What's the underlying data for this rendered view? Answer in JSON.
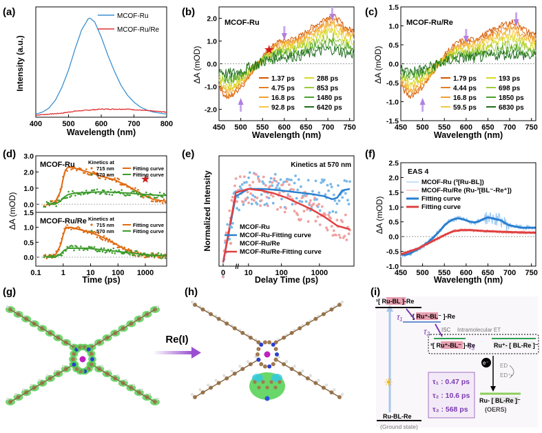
{
  "colors": {
    "mcof_ru": "#3a8fd0",
    "mcof_ru_re": "#e03030",
    "orange": "#e06a10",
    "green": "#3c9a2a",
    "purple": "#9a4fd0",
    "star": "#d01818"
  },
  "panels": {
    "a": {
      "letter": "(a)"
    },
    "b": {
      "letter": "(b)"
    },
    "c": {
      "letter": "(c)"
    },
    "d": {
      "letter": "(d)"
    },
    "e": {
      "letter": "(e)"
    },
    "f": {
      "letter": "(f)"
    },
    "g": {
      "letter": "(g)"
    },
    "h": {
      "letter": "(h)"
    },
    "i": {
      "letter": "(i)"
    }
  },
  "chart_data": [
    {
      "id": "a",
      "type": "line",
      "xlabel": "Wavelength (nm)",
      "ylabel": "Intensity (a.u.)",
      "xlim": [
        400,
        800
      ],
      "ylim": [
        0,
        1.0
      ],
      "xticks": [
        400,
        500,
        600,
        700,
        800
      ],
      "series": [
        {
          "name": "MCOF-Ru",
          "color": "#3a8fd0",
          "x": [
            400,
            420,
            440,
            460,
            480,
            500,
            520,
            540,
            560,
            565,
            580,
            600,
            620,
            640,
            660,
            680,
            700,
            720,
            740,
            760,
            780,
            800
          ],
          "y": [
            0.01,
            0.03,
            0.07,
            0.15,
            0.28,
            0.45,
            0.66,
            0.85,
            0.96,
            0.97,
            0.93,
            0.78,
            0.6,
            0.44,
            0.3,
            0.2,
            0.13,
            0.08,
            0.05,
            0.03,
            0.02,
            0.01
          ]
        },
        {
          "name": "MCOF-Ru/Re",
          "color": "#e03030",
          "x": [
            400,
            440,
            480,
            520,
            560,
            600,
            640,
            680,
            720,
            760,
            800
          ],
          "y": [
            0.0,
            0.01,
            0.02,
            0.04,
            0.05,
            0.06,
            0.06,
            0.06,
            0.05,
            0.04,
            0.03
          ]
        }
      ]
    },
    {
      "id": "b",
      "type": "line",
      "title": "MCOF-Ru",
      "xlabel": "Wavelength (nm)",
      "ylabel": "ΔA (mOD)",
      "xlim": [
        450,
        760
      ],
      "ylim": [
        -2.5,
        2.5
      ],
      "xticks": [
        450,
        500,
        550,
        600,
        650,
        700,
        750
      ],
      "yticks": [
        -2.0,
        -1.0,
        0.0,
        1.0,
        2.0
      ],
      "legend": [
        "1.37 ps",
        "4.75 ps",
        "16.8 ps",
        "92.8 ps",
        "288 ps",
        "853 ps",
        "1480 ps",
        "6420 ps"
      ],
      "amplitudes": [
        1.0,
        0.93,
        0.86,
        0.78,
        0.68,
        0.55,
        0.44,
        0.3
      ],
      "colors": [
        "#d35400",
        "#e67e22",
        "#f0a030",
        "#f5c842",
        "#d8d820",
        "#9ccc3a",
        "#4aa02c",
        "#1d6b1a"
      ],
      "x": [
        450,
        460,
        470,
        480,
        490,
        500,
        510,
        520,
        530,
        540,
        550,
        560,
        570,
        580,
        590,
        600,
        610,
        620,
        630,
        640,
        650,
        660,
        670,
        680,
        690,
        700,
        710,
        720,
        730,
        740,
        750,
        760
      ],
      "y": [
        -0.9,
        -1.3,
        -1.5,
        -1.4,
        -1.2,
        -1.0,
        -0.8,
        -0.5,
        -0.2,
        0.0,
        0.25,
        0.5,
        0.7,
        0.85,
        1.0,
        1.0,
        1.05,
        1.1,
        1.15,
        1.25,
        1.4,
        1.55,
        1.7,
        1.8,
        1.95,
        2.05,
        2.1,
        2.0,
        1.8,
        1.6,
        1.5,
        1.45
      ],
      "markers": {
        "star_nm": 565,
        "arrows_down_nm": [
          600,
          710
        ],
        "arrow_up_nm": 500
      }
    },
    {
      "id": "c",
      "type": "line",
      "title": "MCOF-Ru/Re",
      "xlabel": "Wavelength (nm)",
      "ylabel": "ΔA (mOD)",
      "xlim": [
        450,
        760
      ],
      "ylim": [
        -1.5,
        1.5
      ],
      "xticks": [
        450,
        500,
        550,
        600,
        650,
        700,
        750
      ],
      "yticks": [
        -1.5,
        -1.0,
        -0.5,
        0.0,
        0.5,
        1.0,
        1.5
      ],
      "legend": [
        "1.79 ps",
        "4.44 ps",
        "16.8 ps",
        "59.5 ps",
        "193 ps",
        "698 ps",
        "1850 ps",
        "6830 ps"
      ],
      "amplitudes": [
        1.0,
        0.92,
        0.82,
        0.72,
        0.6,
        0.48,
        0.36,
        0.24
      ],
      "colors": [
        "#d35400",
        "#e67e22",
        "#f0a030",
        "#f5c842",
        "#d8d820",
        "#9ccc3a",
        "#4aa02c",
        "#1d6b1a"
      ],
      "x": [
        450,
        460,
        470,
        480,
        490,
        500,
        510,
        520,
        530,
        540,
        550,
        560,
        570,
        580,
        590,
        600,
        610,
        620,
        630,
        640,
        650,
        660,
        670,
        680,
        690,
        700,
        710,
        720,
        730,
        740,
        750,
        760
      ],
      "y": [
        -0.55,
        -0.75,
        -0.85,
        -0.8,
        -0.7,
        -0.6,
        -0.45,
        -0.3,
        -0.1,
        0.05,
        0.2,
        0.35,
        0.45,
        0.55,
        0.6,
        0.6,
        0.62,
        0.65,
        0.7,
        0.75,
        0.82,
        0.88,
        0.95,
        1.0,
        1.05,
        1.08,
        1.1,
        1.05,
        0.95,
        0.85,
        0.8,
        0.78
      ],
      "markers": {
        "arrows_down_nm": [
          600,
          715
        ],
        "arrow_up_nm": 500
      }
    },
    {
      "id": "d",
      "type": "scatter",
      "xlabel": "Time (ps)",
      "ylabel": "ΔA (mOD)",
      "xscale": "log",
      "xlim": [
        0.1,
        6000
      ],
      "xticks": [
        0.1,
        1,
        10,
        100,
        1000
      ],
      "xticklabels": [
        "0.1",
        "1",
        "10",
        "100",
        "1000"
      ],
      "legend_title": "Kinetics at",
      "subplots": [
        {
          "title": "MCOF-Ru",
          "ylim": [
            -0.5,
            3.0
          ],
          "yticks": [
            0.0,
            1.0,
            2.0,
            3.0
          ],
          "legend": [
            "715 nm",
            "570 nm",
            "Fitting curve",
            "Fitting curve"
          ],
          "series": [
            {
              "name": "715 nm",
              "color": "#e06a10",
              "t": [
                0.3,
                0.5,
                0.8,
                1.0,
                1.2,
                1.5,
                2,
                3,
                5,
                8,
                12,
                20,
                30,
                50,
                80,
                120,
                200,
                300,
                500,
                800,
                1200,
                2000,
                3000,
                5000
              ],
              "v": [
                0.0,
                0.1,
                0.8,
                1.6,
                2.1,
                2.3,
                2.3,
                2.2,
                2.1,
                2.0,
                1.9,
                1.8,
                1.7,
                1.6,
                1.5,
                1.35,
                1.2,
                1.0,
                0.8,
                0.6,
                0.45,
                0.3,
                0.25,
                0.2
              ]
            },
            {
              "name": "570 nm",
              "color": "#3c9a2a",
              "t": [
                0.3,
                0.5,
                0.8,
                1.0,
                1.5,
                2,
                3,
                5,
                8,
                12,
                20,
                30,
                50,
                80,
                120,
                200,
                300,
                500,
                800,
                1200,
                2000,
                3000,
                5000
              ],
              "v": [
                0.0,
                0.0,
                0.2,
                0.4,
                0.6,
                0.65,
                0.7,
                0.72,
                0.74,
                0.75,
                0.76,
                0.76,
                0.75,
                0.74,
                0.72,
                0.7,
                0.68,
                0.65,
                0.62,
                0.6,
                0.58,
                0.56,
                0.55
              ]
            }
          ],
          "star_t": 1000,
          "star_v": 1.6
        },
        {
          "title": "MCOF-Ru/Re",
          "ylim": [
            -0.3,
            1.5
          ],
          "yticks": [
            0.0,
            0.5,
            1.0,
            1.5
          ],
          "legend": [
            "715 nm",
            "570 nm",
            "Fitting curve",
            "Fitting curve"
          ],
          "series": [
            {
              "name": "715 nm",
              "color": "#e06a10",
              "t": [
                0.3,
                0.5,
                0.8,
                1.0,
                1.2,
                1.5,
                2,
                3,
                5,
                8,
                12,
                20,
                30,
                50,
                80,
                120,
                200,
                300,
                500,
                800,
                1200,
                2000,
                3000,
                5000
              ],
              "v": [
                0.0,
                0.05,
                0.4,
                0.75,
                0.95,
                1.0,
                1.0,
                0.95,
                0.9,
                0.85,
                0.8,
                0.72,
                0.65,
                0.55,
                0.45,
                0.35,
                0.25,
                0.18,
                0.12,
                0.08,
                0.06,
                0.05,
                0.04,
                0.03
              ]
            },
            {
              "name": "570 nm",
              "color": "#3c9a2a",
              "t": [
                0.3,
                0.5,
                0.8,
                1.0,
                1.5,
                2,
                3,
                5,
                8,
                12,
                20,
                30,
                50,
                80,
                120,
                200,
                300,
                500,
                800,
                1200,
                2000,
                3000,
                5000
              ],
              "v": [
                0.0,
                0.0,
                0.1,
                0.2,
                0.3,
                0.3,
                0.3,
                0.3,
                0.3,
                0.28,
                0.26,
                0.24,
                0.22,
                0.2,
                0.18,
                0.16,
                0.14,
                0.12,
                0.1,
                0.08,
                0.07,
                0.06,
                0.05
              ]
            }
          ]
        }
      ]
    },
    {
      "id": "e",
      "type": "scatter",
      "title": "Kinetics at 570 nm",
      "xlabel": "Delay Time (ps)",
      "ylabel": "Normalized Intensity",
      "xticklabels": [
        "0",
        "10",
        "100",
        "1000"
      ],
      "legend": [
        "MCOF-Ru",
        "MCOF-Ru-Fitting curve",
        "MCOF-Ru/Re",
        "MCOF-Ru/Re-Fitting curve"
      ],
      "series": [
        {
          "name": "MCOF-Ru-Fitting curve",
          "color": "#2a80d0",
          "u": [
            0,
            0.1,
            0.2,
            0.3,
            0.4,
            0.5,
            0.6,
            0.7,
            0.8,
            0.86,
            0.9,
            0.94,
            1.0
          ],
          "y": [
            0.0,
            0.9,
            1.0,
            1.0,
            0.99,
            0.97,
            0.95,
            0.93,
            0.9,
            0.86,
            0.88,
            0.98,
            1.0
          ]
        },
        {
          "name": "MCOF-Ru/Re-Fitting curve",
          "color": "#e04040",
          "u": [
            0,
            0.1,
            0.2,
            0.3,
            0.4,
            0.5,
            0.6,
            0.7,
            0.8,
            0.9,
            1.0
          ],
          "y": [
            0.0,
            0.95,
            1.0,
            0.98,
            0.94,
            0.88,
            0.8,
            0.72,
            0.62,
            0.5,
            0.45
          ]
        }
      ]
    },
    {
      "id": "f",
      "type": "line",
      "title": "EAS 4",
      "xlabel": "Wavelength (nm)",
      "ylabel": "ΔA (mOD)",
      "xlim": [
        450,
        760
      ],
      "ylim": [
        -1.0,
        2.5
      ],
      "xticks": [
        450,
        500,
        550,
        600,
        650,
        700,
        750
      ],
      "yticks": [
        -1.0,
        -0.5,
        0.0,
        0.5,
        1.0,
        1.5,
        2.0,
        2.5
      ],
      "legend": [
        "MCOF-Ru (³[Ru-BL])",
        "MCOF-Ru/Re (Ru-³[BL⁻-Re⁺])",
        "Fitting curve",
        "Fitting curve"
      ],
      "series": [
        {
          "name": "MCOF-Ru",
          "color": "#2a7fd0",
          "x": [
            450,
            460,
            470,
            480,
            490,
            500,
            510,
            520,
            530,
            540,
            550,
            560,
            570,
            580,
            590,
            600,
            610,
            620,
            630,
            640,
            650,
            660,
            670,
            680,
            690,
            700,
            710,
            720,
            730,
            740,
            750,
            760
          ],
          "y": [
            -0.6,
            -0.62,
            -0.58,
            -0.5,
            -0.42,
            -0.32,
            -0.22,
            -0.1,
            0.05,
            0.2,
            0.38,
            0.5,
            0.58,
            0.62,
            0.6,
            0.55,
            0.5,
            0.48,
            0.52,
            0.6,
            0.65,
            0.62,
            0.58,
            0.55,
            0.45,
            0.38,
            0.35,
            0.32,
            0.3,
            0.3,
            0.3,
            0.3
          ]
        },
        {
          "name": "MCOF-Ru/Re",
          "color": "#e04040",
          "x": [
            450,
            470,
            490,
            510,
            530,
            550,
            570,
            590,
            610,
            630,
            650,
            670,
            690,
            710,
            730,
            760
          ],
          "y": [
            -0.6,
            -0.5,
            -0.4,
            -0.25,
            -0.1,
            0.05,
            0.18,
            0.22,
            0.22,
            0.2,
            0.18,
            0.17,
            0.16,
            0.15,
            0.14,
            0.13
          ]
        }
      ]
    }
  ],
  "panel_g": {
    "title": ""
  },
  "panel_h": {
    "arrow_label": "Re(I)"
  },
  "panel_i": {
    "state1": "¹[ Ru-BL ]-Re",
    "state2": "¹[ Ru⁺-BL⁻ ]-Re",
    "state3": "³[ Ru⁺-BL⁻ ]-Re",
    "state4": "Ru⁺- [ BL-Re ]⁻",
    "isc": "ISC",
    "intra_et": "Intramolecular ET",
    "tau1": "τ₁",
    "tau2": "τ₂",
    "tau3": "τ₃",
    "electron": "e⁻",
    "ed": "ED",
    "ed_plus": "ED⁺•",
    "reduced": "Ru- [ BL-Re ]⁻",
    "oers": "(OERS)",
    "ground": "Ru-BL-Re",
    "ground_label": "(Ground state)",
    "lifetimes": [
      "τ₁ : 0.47 ps",
      "τ₂ : 10.6 ps",
      "τ₃ : 568 ps"
    ]
  }
}
